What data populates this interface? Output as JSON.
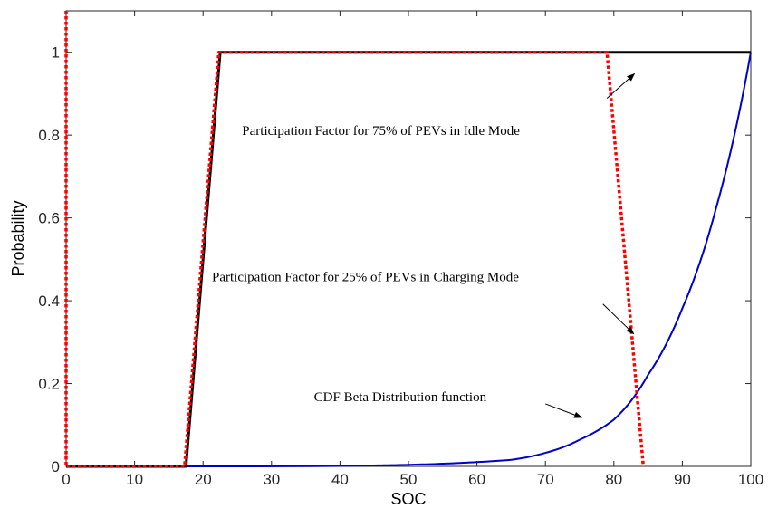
{
  "chart_data": {
    "type": "line",
    "xlabel": "SOC",
    "ylabel": "Probability",
    "xlim": [
      0,
      100
    ],
    "ylim": [
      0,
      1.1
    ],
    "xticks": [
      "0",
      "10",
      "20",
      "30",
      "40",
      "50",
      "60",
      "70",
      "80",
      "90",
      "100"
    ],
    "yticks": [
      "0",
      "0.2",
      "0.4",
      "0.6",
      "0.8",
      "1"
    ],
    "grid": false,
    "series": [
      {
        "key": "idle",
        "color": "#000000",
        "style": "solid",
        "x": [
          0,
          17.5,
          22.5,
          100
        ],
        "y": [
          0,
          0,
          1,
          1
        ]
      },
      {
        "key": "charging",
        "color": "#ff0000",
        "style": "dotted",
        "x": [
          0,
          0,
          0,
          17.3,
          22.3,
          22.5,
          79,
          84.3
        ],
        "y": [
          1.1,
          0,
          0,
          0,
          1,
          1,
          1,
          0
        ]
      },
      {
        "key": "cdf",
        "color": "#0000cc",
        "style": "solid",
        "x": [
          0,
          40,
          45,
          50,
          55,
          60,
          65,
          70,
          75,
          80,
          85,
          90,
          95,
          100
        ],
        "y": [
          0,
          0.0011,
          0.0022,
          0.0039,
          0.0065,
          0.0104,
          0.0158,
          0.0327,
          0.0643,
          0.1129,
          0.2212,
          0.3815,
          0.6278,
          1.0
        ]
      }
    ],
    "annotations": [
      {
        "text": "Participation Factor for 75% of PEVs in Idle Mode",
        "text_x": 25.7,
        "text_y": 0.8,
        "arrow_from": [
          79,
          0.889
        ],
        "arrow_to": [
          83,
          0.948
        ]
      },
      {
        "text": "Participation Factor for 25% of PEVs in Charging Mode",
        "text_x": 21.3,
        "text_y": 0.447,
        "arrow_from": [
          78.4,
          0.392
        ],
        "arrow_to": [
          82.9,
          0.32
        ]
      },
      {
        "text": "CDF Beta Distribution function",
        "text_x": 36.2,
        "text_y": 0.158,
        "arrow_from": [
          70,
          0.151
        ],
        "arrow_to": [
          75.3,
          0.118
        ]
      }
    ]
  }
}
